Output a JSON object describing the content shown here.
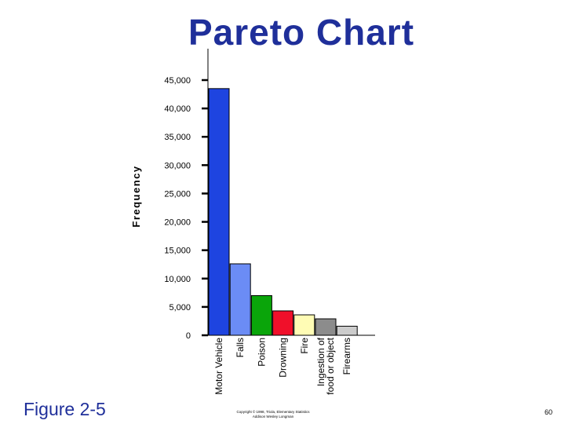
{
  "chart_data": {
    "type": "bar",
    "title": "Pareto Chart",
    "ylabel": "Frequency",
    "xlabel": "",
    "categories": [
      "Motor Vehicle",
      "Falls",
      "Poison",
      "Drowning",
      "Fire",
      "Ingestion of food or object",
      "Firearms"
    ],
    "category_lines": [
      [
        "Motor Vehicle"
      ],
      [
        "Falls"
      ],
      [
        "Poison"
      ],
      [
        "Drowning"
      ],
      [
        "Fire"
      ],
      [
        "Ingestion of",
        "food or object"
      ],
      [
        "Firearms"
      ]
    ],
    "values": [
      43500,
      12600,
      7000,
      4300,
      3600,
      2900,
      1600
    ],
    "colors": [
      "#1e44e0",
      "#6b8cf5",
      "#0aa50a",
      "#f0102a",
      "#fffcb5",
      "#8c8c8c",
      "#cccccc"
    ],
    "ylim": [
      0,
      45000
    ],
    "yticks": [
      0,
      5000,
      10000,
      15000,
      20000,
      25000,
      30000,
      35000,
      40000,
      45000
    ],
    "ytick_labels": [
      "0",
      "5,000",
      "10,000",
      "15,000",
      "20,000",
      "25,000",
      "30,000",
      "35,000",
      "40,000",
      "45,000"
    ],
    "grid": false,
    "legend": "none"
  },
  "footer": {
    "figure_label": "Figure 2-5",
    "copyright_line1": "Copyright © 1998, Triola, Elementary Statistics",
    "copyright_line2": "Addison Wesley Longman",
    "page_number": "60"
  }
}
